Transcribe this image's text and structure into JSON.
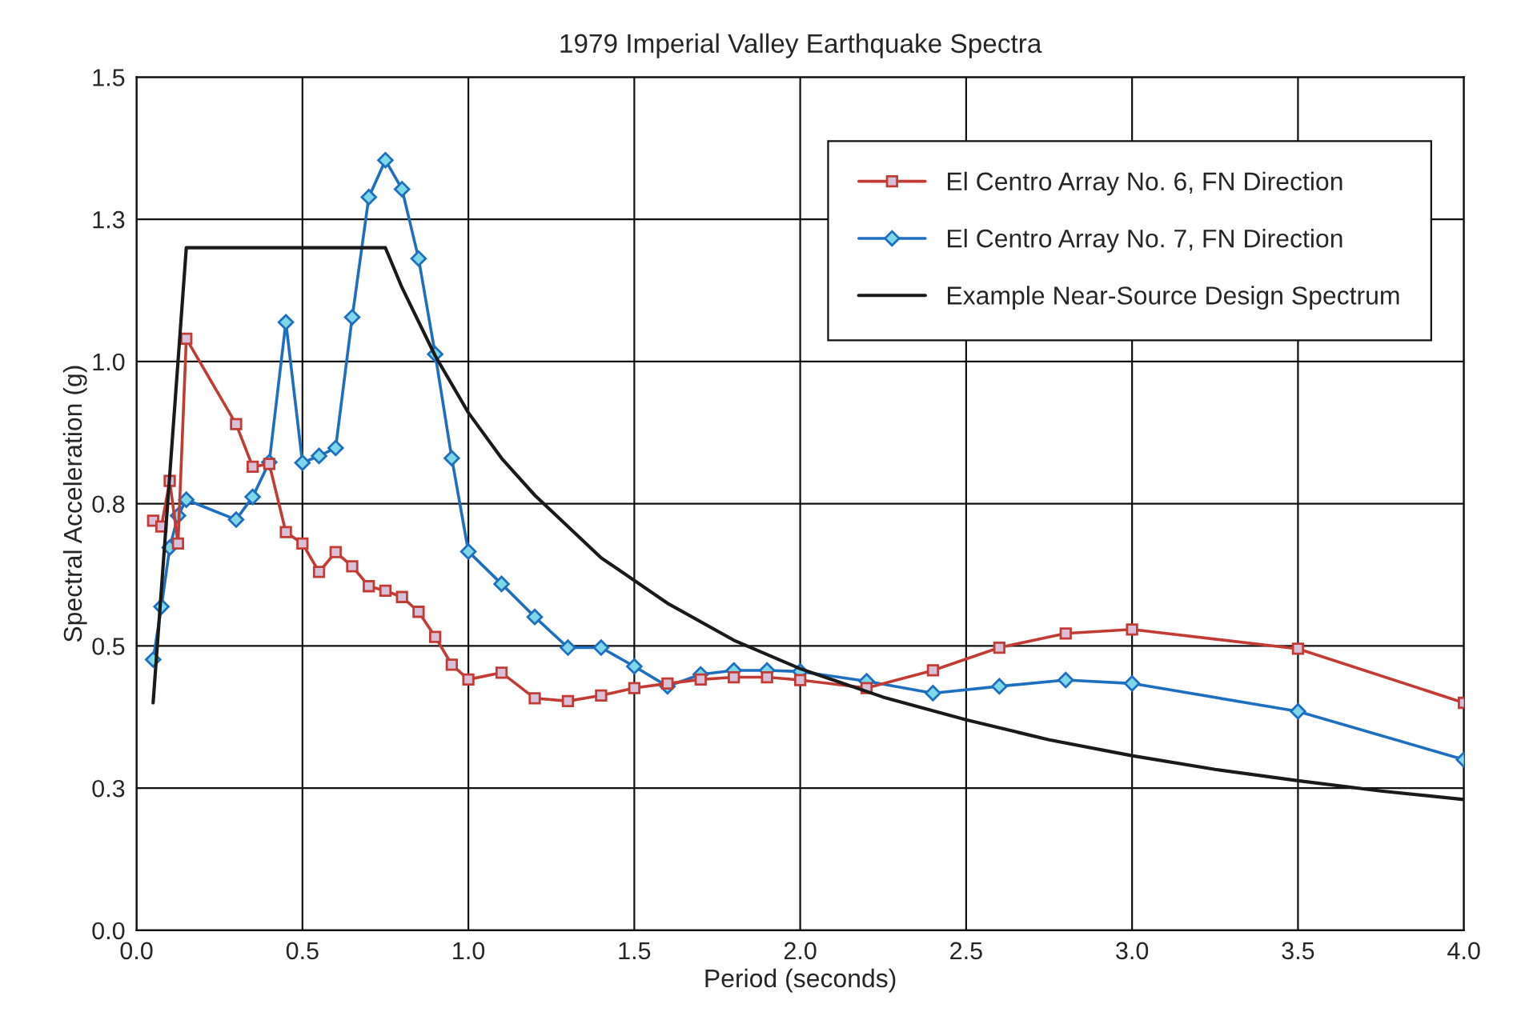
{
  "chart_data": {
    "type": "line",
    "title": "1979 Imperial Valley Earthquake Spectra",
    "xlabel": "Period (seconds)",
    "ylabel": "Spectral Acceleration (g)",
    "xlim": [
      0,
      4.0
    ],
    "xticks": [
      {
        "value": 0,
        "label": "0.0"
      },
      0.5,
      {
        "value": 1,
        "label": "1.0"
      },
      1.5,
      {
        "value": 2,
        "label": "2.0"
      },
      2.5,
      {
        "value": 3,
        "label": "3.0"
      },
      3.5,
      {
        "value": 4,
        "label": "4.0"
      }
    ],
    "ylim": [
      0,
      1.5
    ],
    "yticks": [
      {
        "value": 0,
        "label": "0.0"
      },
      {
        "value": 0.25,
        "label": "0.3"
      },
      0.5,
      {
        "value": 0.75,
        "label": "0.8"
      },
      {
        "value": 1,
        "label": "1.0"
      },
      {
        "value": 1.25,
        "label": "1.3"
      },
      1.5
    ],
    "grid": true,
    "legend": "top right",
    "line_style": "solid",
    "series": [
      {
        "name": "El Centro Array No. 6, FN Direction",
        "color": "#c23b34",
        "marker": "square",
        "x": [
          0.05,
          0.075,
          0.1,
          0.125,
          0.15,
          0.3,
          0.35,
          0.4,
          0.45,
          0.5,
          0.55,
          0.6,
          0.65,
          0.7,
          0.75,
          0.8,
          0.85,
          0.9,
          0.95,
          1.0,
          1.1,
          1.2,
          1.3,
          1.4,
          1.5,
          1.6,
          1.7,
          1.8,
          1.9,
          2.0,
          2.2,
          2.4,
          2.6,
          2.8,
          3.0,
          3.5,
          4.0
        ],
        "values": [
          0.72,
          0.71,
          0.79,
          0.68,
          1.04,
          0.89,
          0.815,
          0.82,
          0.7,
          0.68,
          0.63,
          0.665,
          0.64,
          0.605,
          0.597,
          0.586,
          0.56,
          0.516,
          0.467,
          0.441,
          0.453,
          0.408,
          0.403,
          0.413,
          0.426,
          0.434,
          0.441,
          0.445,
          0.445,
          0.44,
          0.426,
          0.457,
          0.497,
          0.522,
          0.529,
          0.495,
          0.4
        ]
      },
      {
        "name": "El Centro Array No. 7, FN Direction",
        "color": "#1f6fc0",
        "marker": "diamond",
        "x": [
          0.05,
          0.075,
          0.1,
          0.125,
          0.15,
          0.3,
          0.35,
          0.4,
          0.45,
          0.5,
          0.55,
          0.6,
          0.65,
          0.7,
          0.75,
          0.8,
          0.85,
          0.9,
          0.95,
          1.0,
          1.1,
          1.2,
          1.3,
          1.4,
          1.5,
          1.6,
          1.7,
          1.8,
          1.9,
          2.0,
          2.2,
          2.4,
          2.6,
          2.8,
          3.0,
          3.5,
          4.0
        ],
        "values": [
          0.476,
          0.569,
          0.673,
          0.729,
          0.757,
          0.722,
          0.762,
          0.823,
          1.069,
          0.822,
          0.834,
          0.848,
          1.078,
          1.289,
          1.354,
          1.303,
          1.181,
          1.013,
          0.83,
          0.666,
          0.609,
          0.551,
          0.497,
          0.497,
          0.464,
          0.429,
          0.45,
          0.457,
          0.457,
          0.455,
          0.438,
          0.417,
          0.429,
          0.44,
          0.434,
          0.385,
          0.3
        ]
      },
      {
        "name": "Example Near-Source Design Spectrum",
        "color": "#1a1a1a",
        "marker": "none",
        "x": [
          0.05,
          0.15,
          0.75,
          0.8,
          0.9,
          1.0,
          1.1,
          1.2,
          1.4,
          1.6,
          1.8,
          2.0,
          2.25,
          2.5,
          2.75,
          3.0,
          3.25,
          3.5,
          3.75,
          4.0
        ],
        "values": [
          0.4,
          1.2,
          1.2,
          1.13,
          1.01,
          0.91,
          0.83,
          0.765,
          0.655,
          0.575,
          0.51,
          0.46,
          0.41,
          0.37,
          0.335,
          0.307,
          0.283,
          0.263,
          0.245,
          0.23
        ]
      }
    ]
  }
}
